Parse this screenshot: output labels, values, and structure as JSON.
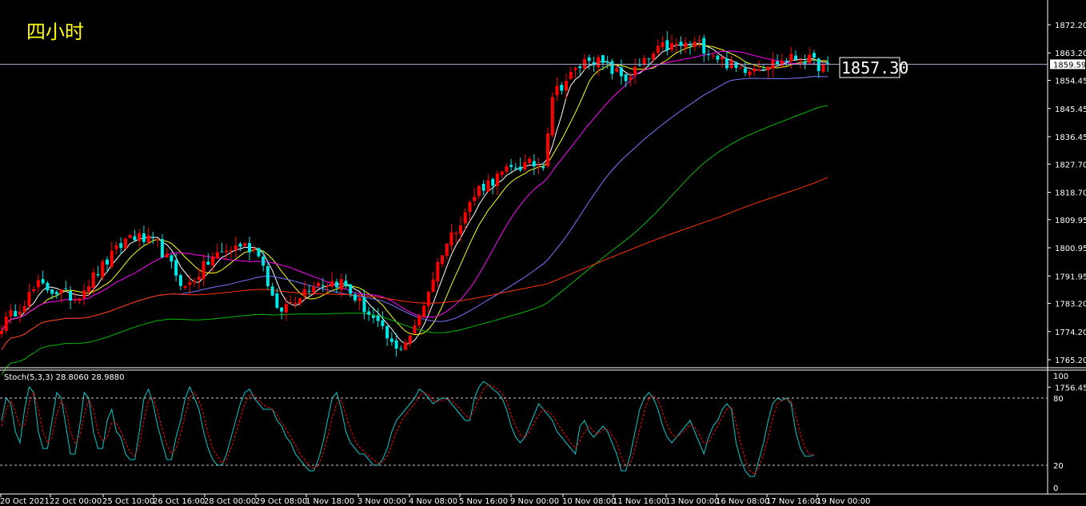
{
  "timeframe": "四小时",
  "price_big": "1857.30",
  "price_box": "1859.59",
  "indicator_label": "Stoch(5,3,3) 28.8060 28.9880",
  "colors": {
    "up": "#ff0000",
    "down": "#00e5e5",
    "ma5": "#ffffff",
    "ma10": "#ffff00",
    "ma20": "#ff00ff",
    "ma40": "#7777ff",
    "ma60": "#00bb00",
    "ma120": "#ff3300",
    "stoch_k": "#00c8c8",
    "stoch_d": "#ff0000"
  },
  "chart_data": [
    {
      "type": "candlestick",
      "title": "",
      "yticks": [
        1872.2,
        1863.2,
        1854.45,
        1845.45,
        1836.45,
        1827.7,
        1818.7,
        1809.95,
        1800.95,
        1791.95,
        1783.2,
        1774.2,
        1765.2,
        1756.45
      ],
      "ylim": [
        1756.45,
        1876.0
      ],
      "current_price": 1859.59,
      "x_labels": [
        "20 Oct 2021",
        "22 Oct 00:00",
        "25 Oct 10:00",
        "26 Oct 16:00",
        "28 Oct 00:00",
        "29 Oct 08:00",
        "1 Nov 18:00",
        "3 Nov 00:00",
        "4 Nov 08:00",
        "5 Nov 16:00",
        "9 Nov 00:00",
        "10 Nov 08:00",
        "11 Nov 16:00",
        "13 Nov 00:00",
        "16 Nov 08:00",
        "17 Nov 16:00",
        "19 Nov 00:00"
      ],
      "close_anchors": [
        [
          0,
          1776
        ],
        [
          8,
          1789
        ],
        [
          16,
          1785
        ],
        [
          22,
          1795
        ],
        [
          28,
          1805
        ],
        [
          34,
          1802
        ],
        [
          40,
          1788
        ],
        [
          46,
          1798
        ],
        [
          52,
          1802
        ],
        [
          56,
          1800
        ],
        [
          60,
          1780
        ],
        [
          68,
          1790
        ],
        [
          74,
          1790
        ],
        [
          80,
          1780
        ],
        [
          86,
          1768
        ],
        [
          90,
          1775
        ],
        [
          96,
          1800
        ],
        [
          104,
          1820
        ],
        [
          112,
          1827
        ],
        [
          118,
          1828
        ],
        [
          120,
          1850
        ],
        [
          128,
          1862
        ],
        [
          136,
          1855
        ],
        [
          144,
          1865
        ],
        [
          152,
          1866
        ],
        [
          160,
          1858
        ],
        [
          168,
          1860
        ],
        [
          174,
          1862
        ],
        [
          180,
          1858
        ]
      ],
      "series": [
        {
          "name": "MA5",
          "period": 5
        },
        {
          "name": "MA10",
          "period": 10
        },
        {
          "name": "MA20",
          "period": 20
        },
        {
          "name": "MA40",
          "period": 40
        },
        {
          "name": "MA60",
          "period": 60
        },
        {
          "name": "MA120",
          "period": 120
        }
      ]
    },
    {
      "type": "line",
      "title": "Stoch(5,3,3)",
      "ylim": [
        0,
        100
      ],
      "yticks": [
        100,
        80,
        20,
        0
      ],
      "levels": [
        80,
        20
      ],
      "series": [
        {
          "name": "%K",
          "values": [
            60,
            80,
            75,
            50,
            40,
            70,
            90,
            85,
            50,
            35,
            35,
            60,
            85,
            80,
            55,
            30,
            30,
            55,
            85,
            80,
            50,
            35,
            35,
            60,
            70,
            50,
            45,
            30,
            25,
            25,
            50,
            80,
            88,
            75,
            55,
            40,
            25,
            25,
            45,
            60,
            80,
            90,
            80,
            70,
            50,
            35,
            25,
            20,
            20,
            30,
            45,
            60,
            75,
            85,
            88,
            80,
            75,
            70,
            70,
            70,
            60,
            55,
            45,
            40,
            30,
            25,
            20,
            15,
            15,
            25,
            40,
            60,
            80,
            85,
            70,
            50,
            40,
            35,
            30,
            30,
            25,
            20,
            20,
            25,
            35,
            50,
            60,
            65,
            70,
            75,
            80,
            88,
            85,
            80,
            75,
            78,
            80,
            80,
            75,
            70,
            65,
            60,
            60,
            80,
            90,
            95,
            92,
            88,
            85,
            80,
            70,
            55,
            45,
            40,
            45,
            55,
            65,
            75,
            70,
            65,
            60,
            50,
            45,
            40,
            35,
            30,
            55,
            60,
            50,
            45,
            50,
            55,
            50,
            40,
            30,
            15,
            15,
            30,
            50,
            70,
            80,
            85,
            80,
            70,
            55,
            45,
            40,
            45,
            50,
            55,
            60,
            50,
            40,
            30,
            45,
            55,
            60,
            70,
            75,
            70,
            40,
            25,
            15,
            10,
            10,
            25,
            40,
            60,
            75,
            80,
            78,
            80,
            75,
            50,
            35,
            28,
            28,
            29
          ]
        },
        {
          "name": "%D",
          "values": [
            55,
            70,
            78,
            68,
            55,
            55,
            75,
            85,
            70,
            50,
            40,
            45,
            65,
            78,
            70,
            50,
            40,
            45,
            65,
            78,
            70,
            50,
            42,
            45,
            58,
            58,
            50,
            40,
            32,
            28,
            38,
            60,
            78,
            80,
            68,
            52,
            38,
            30,
            35,
            48,
            65,
            80,
            85,
            78,
            65,
            48,
            35,
            28,
            22,
            25,
            35,
            48,
            62,
            75,
            82,
            83,
            78,
            74,
            72,
            70,
            65,
            58,
            52,
            45,
            38,
            30,
            25,
            20,
            17,
            20,
            30,
            45,
            62,
            75,
            78,
            65,
            52,
            42,
            36,
            32,
            28,
            25,
            22,
            23,
            28,
            38,
            50,
            58,
            65,
            70,
            75,
            82,
            85,
            83,
            78,
            77,
            78,
            79,
            78,
            74,
            70,
            65,
            62,
            70,
            80,
            88,
            92,
            90,
            88,
            84,
            78,
            65,
            55,
            47,
            45,
            50,
            58,
            65,
            70,
            68,
            65,
            58,
            52,
            46,
            40,
            35,
            42,
            50,
            55,
            50,
            48,
            52,
            52,
            47,
            40,
            28,
            20,
            22,
            35,
            52,
            68,
            80,
            82,
            78,
            68,
            56,
            48,
            45,
            48,
            52,
            56,
            54,
            48,
            40,
            40,
            48,
            55,
            63,
            70,
            72,
            58,
            40,
            25,
            15,
            12,
            18,
            30,
            45,
            62,
            75,
            78,
            79,
            77,
            65,
            48,
            36,
            30,
            28.99
          ]
        }
      ]
    }
  ]
}
